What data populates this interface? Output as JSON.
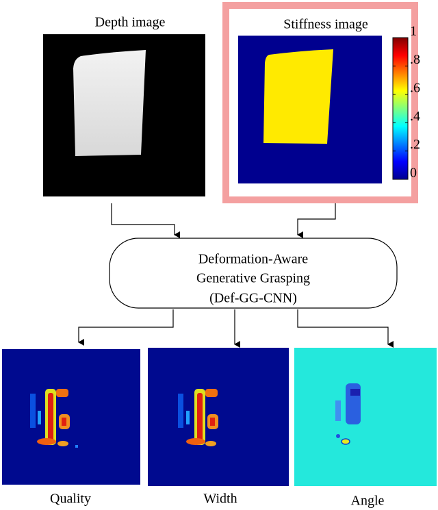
{
  "depth_image": {
    "title": "Depth image"
  },
  "stiffness_image": {
    "title": "Stiffness image",
    "colorbar": {
      "ticks": [
        0,
        {
          "value": 0.2,
          "label": ".2"
        },
        {
          "value": 0.4,
          "label": ".4"
        },
        {
          "value": 0.6,
          "label": ".6"
        },
        {
          "value": 0.8,
          "label": ".8"
        },
        1
      ]
    }
  },
  "model": {
    "lines": [
      "Deformation-Aware",
      "Generative Grasping",
      "(Def-GG-CNN)"
    ]
  },
  "outputs": [
    {
      "label": "Quality"
    },
    {
      "label": "Width"
    },
    {
      "label": "Angle"
    }
  ]
}
